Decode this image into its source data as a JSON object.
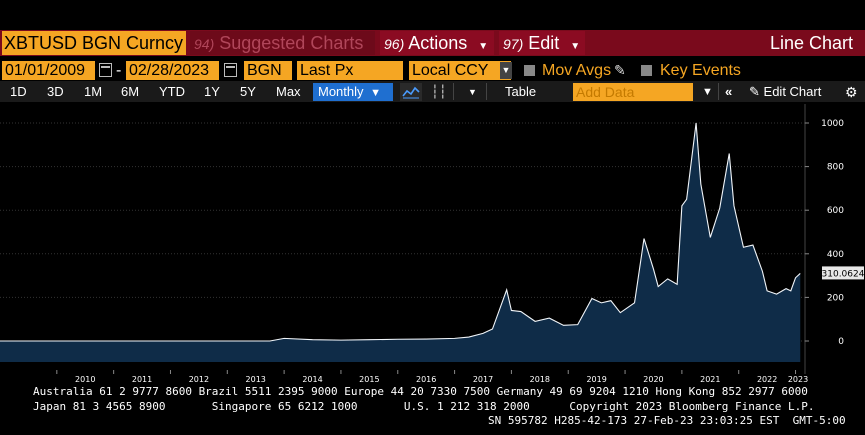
{
  "header": {
    "ticker": "XBTUSD BGN Curncy",
    "suggested": {
      "num": "94)",
      "label": "Suggested Charts"
    },
    "actions": {
      "num": "96)",
      "label": "Actions"
    },
    "edit": {
      "num": "97)",
      "label": "Edit"
    },
    "chart_type": "Line Chart"
  },
  "settings": {
    "start_date": "01/01/2009",
    "end_date": "02/28/2023",
    "source": "BGN",
    "field": "Last Px",
    "currency": "Local CCY",
    "mov_avgs": "Mov Avgs",
    "key_events": "Key Events"
  },
  "toolbar": {
    "periods": [
      "1D",
      "3D",
      "1M",
      "6M",
      "YTD",
      "1Y",
      "5Y",
      "Max"
    ],
    "frequency": "Monthly",
    "table": "Table",
    "add_data_placeholder": "Add Data",
    "edit_chart": "Edit Chart"
  },
  "chart_data": {
    "type": "area",
    "x_tick_labels": [
      "2010",
      "2011",
      "2012",
      "2013",
      "2014",
      "2015",
      "2016",
      "2017",
      "2018",
      "2019",
      "2020",
      "2021",
      "2022",
      "2023"
    ],
    "y_tick_labels": [
      "1000",
      "800",
      "600",
      "400",
      "200",
      "0"
    ],
    "ylim": [
      -90,
      1020
    ],
    "last_value_label": "310.0624",
    "x": [
      "2009-01",
      "2009-07",
      "2010-01",
      "2010-07",
      "2011-01",
      "2011-07",
      "2012-01",
      "2012-07",
      "2013-01",
      "2013-04",
      "2013-07",
      "2013-10",
      "2014-01",
      "2014-07",
      "2015-01",
      "2015-07",
      "2016-01",
      "2016-07",
      "2017-01",
      "2017-04",
      "2017-07",
      "2017-09",
      "2017-12",
      "2018-01",
      "2018-03",
      "2018-06",
      "2018-09",
      "2018-12",
      "2019-03",
      "2019-06",
      "2019-08",
      "2019-10",
      "2019-12",
      "2020-03",
      "2020-05",
      "2020-07",
      "2020-08",
      "2020-10",
      "2020-12",
      "2021-01",
      "2021-02",
      "2021-04",
      "2021-05",
      "2021-07",
      "2021-09",
      "2021-11",
      "2021-12",
      "2022-02",
      "2022-04",
      "2022-06",
      "2022-07",
      "2022-09",
      "2022-11",
      "2022-12",
      "2023-01",
      "2023-02"
    ],
    "series": [
      {
        "values": [
          0,
          0,
          0,
          0,
          0,
          0,
          0,
          0,
          0,
          0,
          0,
          0,
          12,
          6,
          4,
          6,
          8,
          9,
          12,
          18,
          35,
          55,
          235,
          140,
          135,
          90,
          105,
          72,
          75,
          195,
          175,
          185,
          130,
          175,
          470,
          330,
          250,
          285,
          260,
          620,
          650,
          1000,
          720,
          475,
          610,
          860,
          620,
          430,
          440,
          320,
          230,
          215,
          240,
          230,
          290,
          310
        ]
      }
    ]
  },
  "footer": {
    "line1": "Australia 61 2 9777 8600 Brazil 5511 2395 9000 Europe 44 20 7330 7500 Germany 49 69 9204 1210 Hong Kong 852 2977 6000",
    "line2": "Japan 81 3 4565 8900       Singapore 65 6212 1000       U.S. 1 212 318 2000      Copyright 2023 Bloomberg Finance L.P.",
    "line3": "SN 595782 H285-42-173 27-Feb-23 23:03:25 EST  GMT-5:00"
  }
}
